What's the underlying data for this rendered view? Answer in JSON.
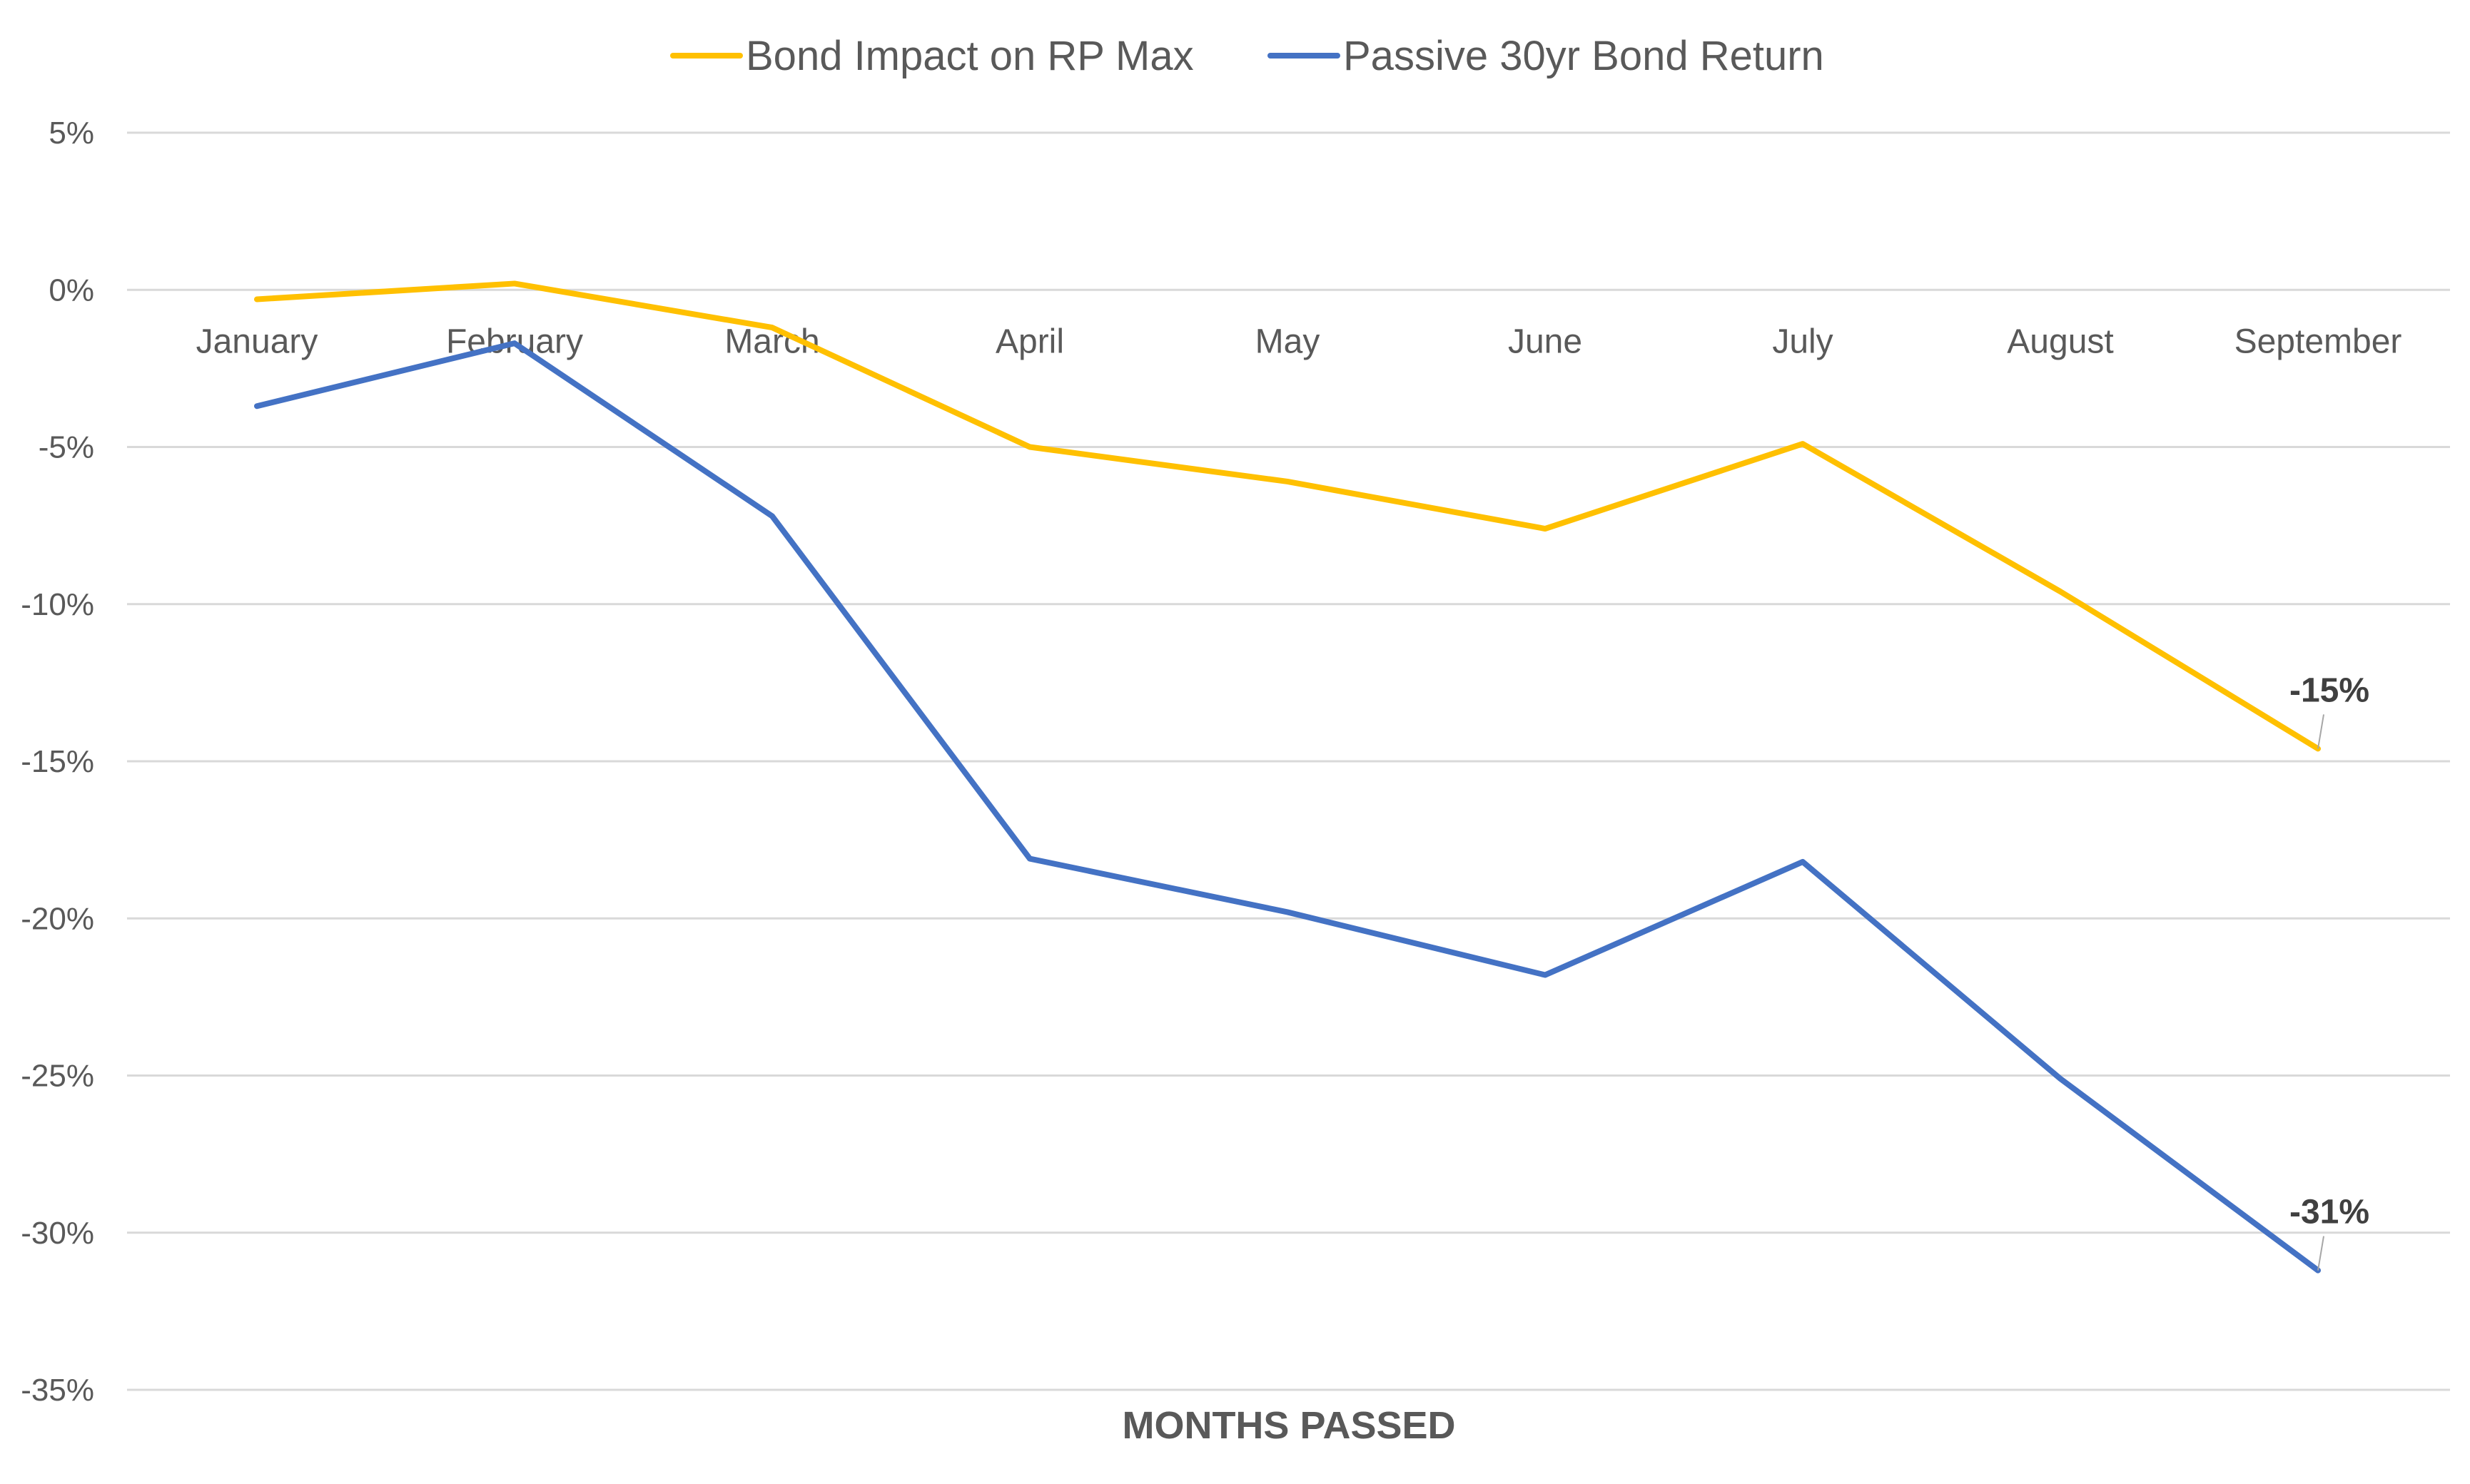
{
  "chart_data": {
    "type": "line",
    "categories": [
      "January",
      "February",
      "March",
      "April",
      "May",
      "June",
      "July",
      "August",
      "September"
    ],
    "series": [
      {
        "name": "Bond Impact on RP Max",
        "color": "#FFC000",
        "values": [
          -0.3,
          0.2,
          -1.2,
          -5.0,
          -6.1,
          -7.6,
          -4.9,
          -9.6,
          -14.6
        ],
        "end_label": "-15%"
      },
      {
        "name": "Passive 30yr Bond Return",
        "color": "#4472C4",
        "values": [
          -3.7,
          -1.7,
          -7.2,
          -18.1,
          -19.8,
          -21.8,
          -18.2,
          -25.1,
          -31.2
        ],
        "end_label": "-31%"
      }
    ],
    "y_ticks": [
      "5%",
      "0%",
      "-5%",
      "-10%",
      "-15%",
      "-20%",
      "-25%",
      "-30%",
      "-35%"
    ],
    "ylim": [
      -35,
      5
    ],
    "xlabel": "MONTHS PASSED",
    "ylabel": "",
    "title": "",
    "grid": true,
    "legend_position": "top-center"
  }
}
